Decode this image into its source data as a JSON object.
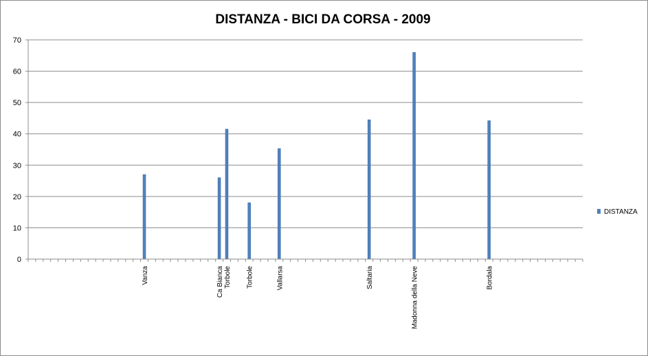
{
  "chart_data": {
    "type": "bar",
    "title": "DISTANZA - BICI DA CORSA - 2009",
    "xlabel": "",
    "ylabel": "",
    "ylim": [
      0,
      70
    ],
    "yticks": [
      0,
      10,
      20,
      30,
      40,
      50,
      60,
      70
    ],
    "grid": true,
    "legend_position": "right",
    "series": [
      {
        "name": "DISTANZA",
        "color": "#4F81BD",
        "points": [
          {
            "slot": 15,
            "label": "Vanza",
            "value": 27
          },
          {
            "slot": 25,
            "label": "Ca Bianca",
            "value": 26
          },
          {
            "slot": 26,
            "label": "Torbole",
            "value": 41.5
          },
          {
            "slot": 29,
            "label": "Torbole",
            "value": 18
          },
          {
            "slot": 33,
            "label": "Vallarsa",
            "value": 35.3
          },
          {
            "slot": 45,
            "label": "Saltaria",
            "value": 44.5
          },
          {
            "slot": 51,
            "label": "Madonna della Neve",
            "value": 66
          },
          {
            "slot": 61,
            "label": "Bordala",
            "value": 44.2
          }
        ]
      }
    ],
    "category_slots": 74
  }
}
